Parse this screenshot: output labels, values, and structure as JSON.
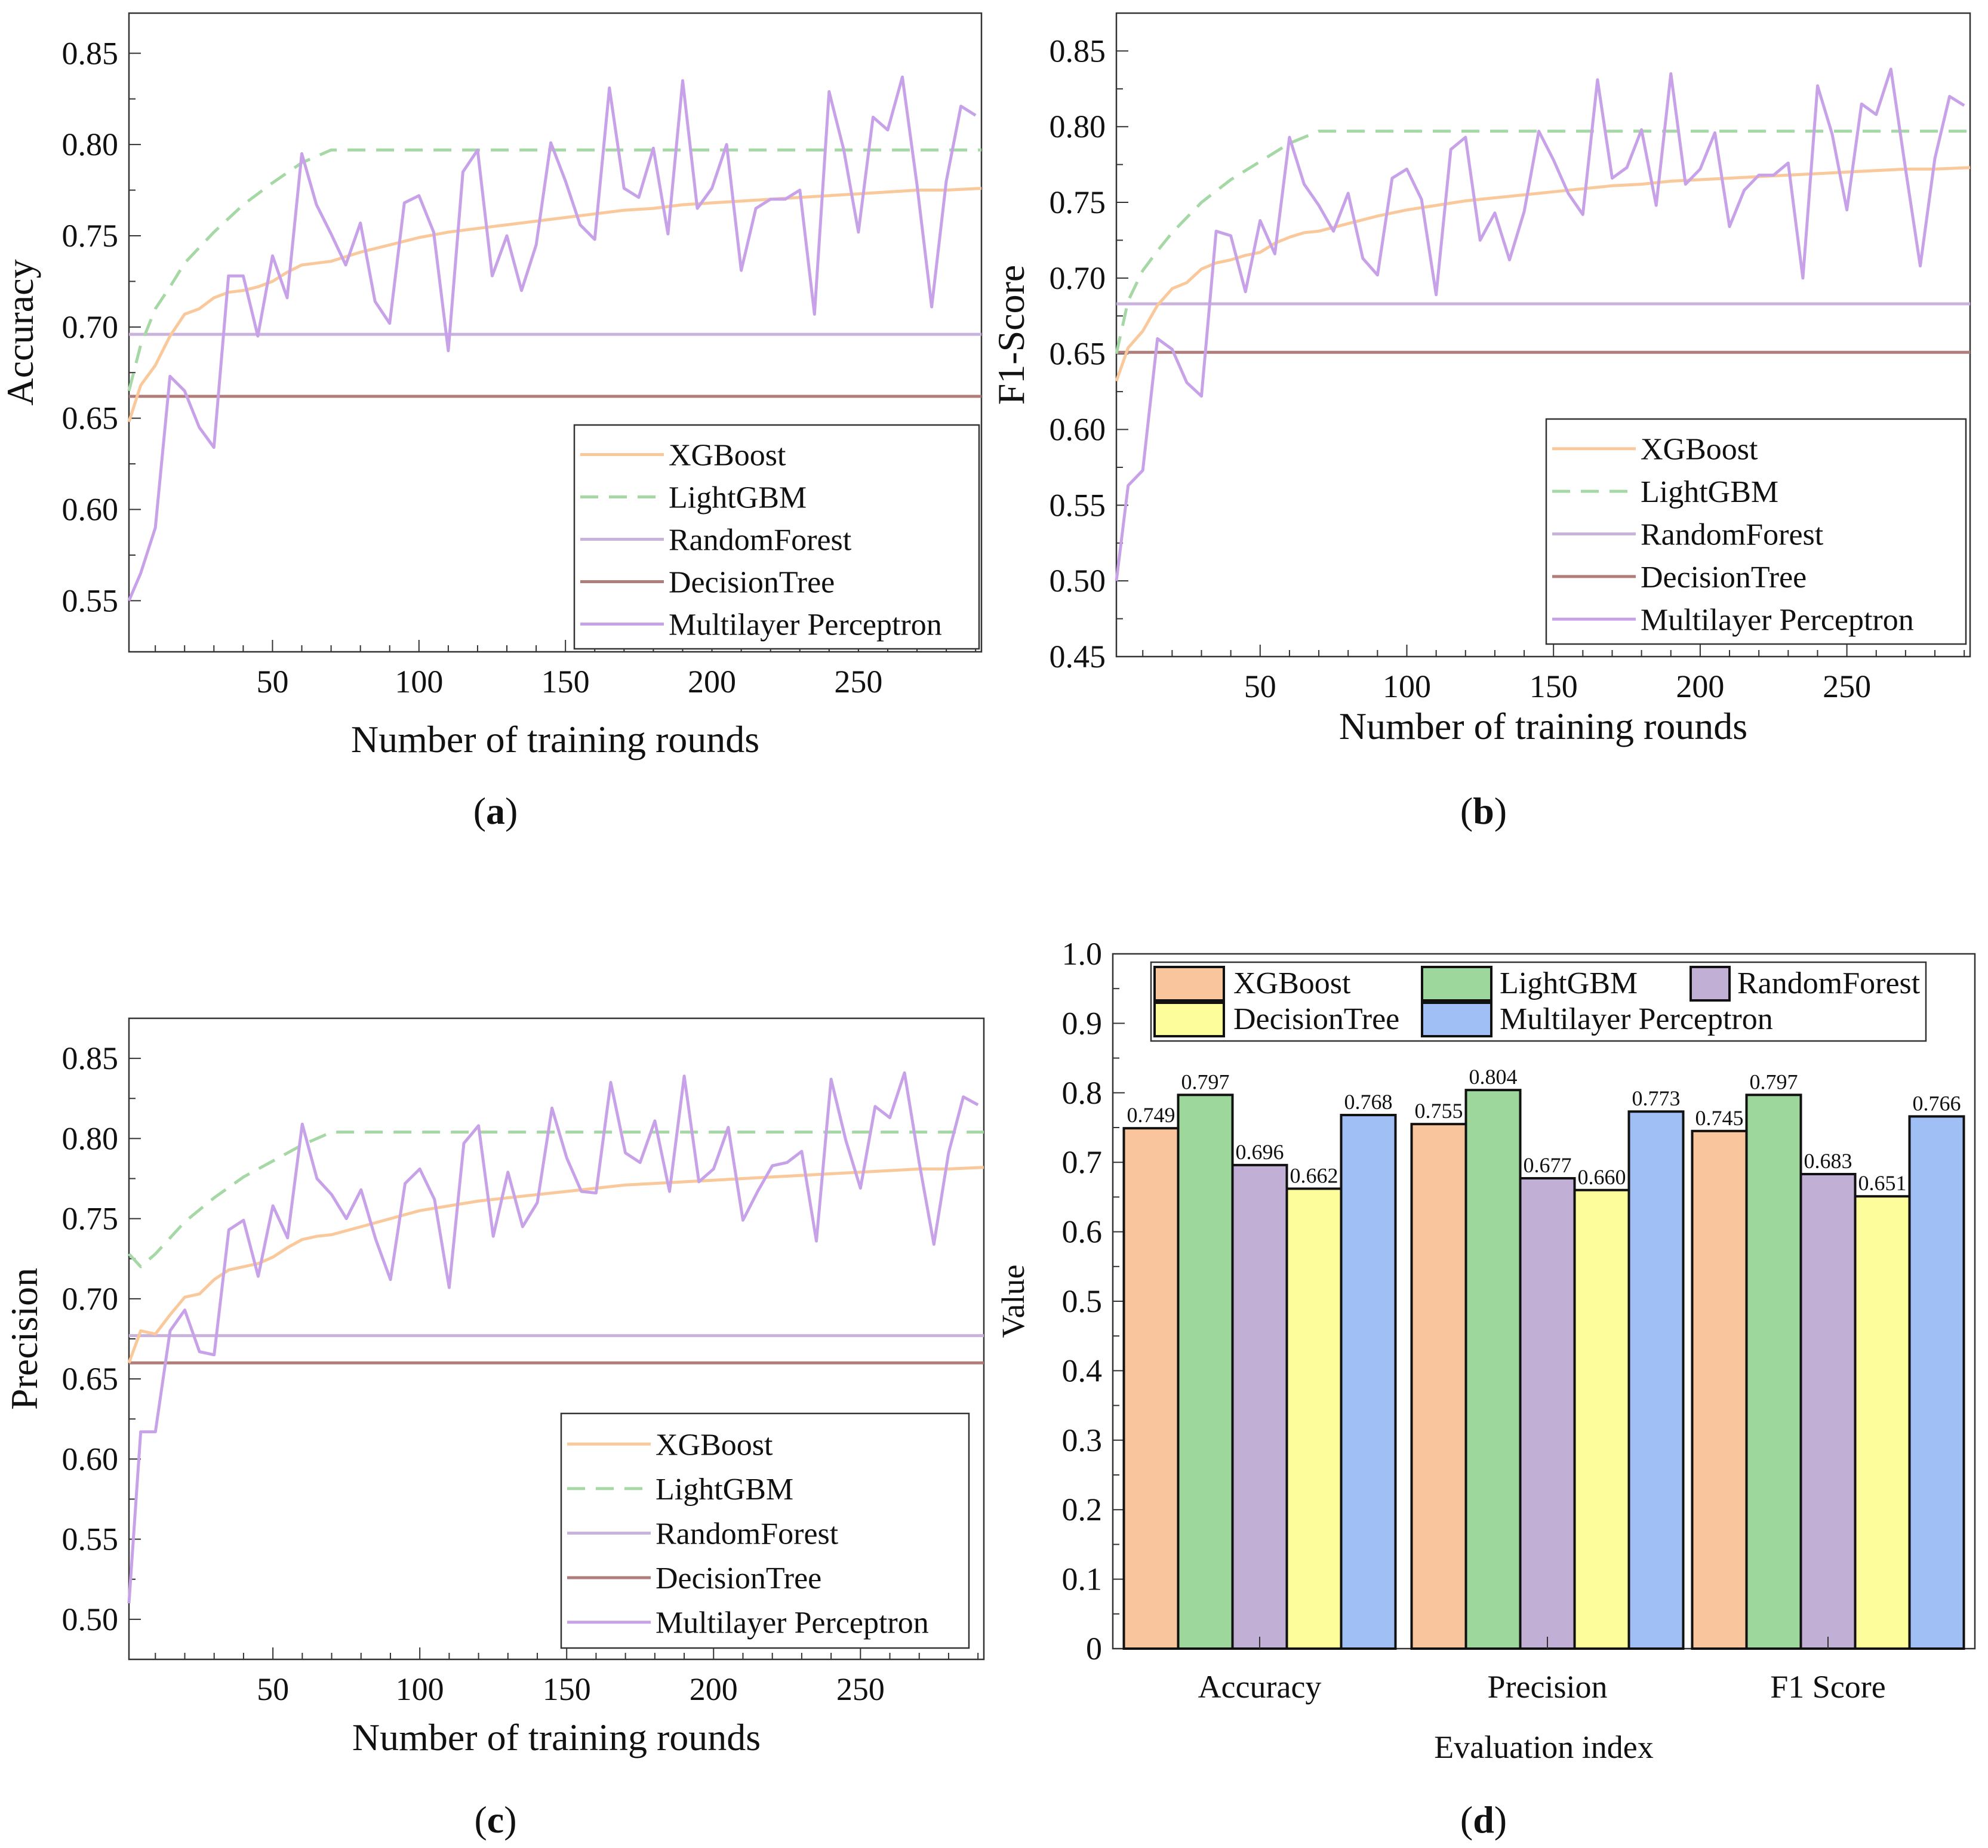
{
  "legend_labels": [
    "XGBoost",
    "LightGBM",
    "RandomForest",
    "DecisionTree",
    "Multilayer Perceptron"
  ],
  "colors": {
    "XGBoost": "#f9c89b",
    "LightGBM": "#a6d8a6",
    "RandomForest": "#c9b3dd",
    "DecisionTree": "#b07d7a",
    "Multilayer Perceptron": "#c8a2e8",
    "bar_XGBoost": "#f9c59c",
    "bar_LightGBM": "#9ed79c",
    "bar_RandomForest": "#c2afd6",
    "bar_DecisionTree": "#fdfd9c",
    "bar_MLP": "#9fbff5"
  },
  "captions": {
    "a": "a",
    "b": "b",
    "c": "c",
    "d": "d"
  },
  "chart_data": [
    {
      "id": "a",
      "type": "line",
      "xlabel": "Number of training rounds",
      "ylabel": "Accuracy",
      "xlim": [
        1,
        292
      ],
      "ylim": [
        0.522,
        0.872
      ],
      "xticks": [
        50,
        100,
        150,
        200,
        250
      ],
      "yticks": [
        0.55,
        0.6,
        0.65,
        0.7,
        0.75,
        0.8,
        0.85
      ],
      "series": [
        {
          "name": "XGBoost",
          "style": "solid",
          "x": [
            1,
            5,
            10,
            15,
            20,
            25,
            30,
            35,
            40,
            45,
            50,
            55,
            60,
            65,
            70,
            80,
            90,
            100,
            110,
            120,
            130,
            140,
            150,
            160,
            170,
            180,
            190,
            200,
            210,
            220,
            230,
            240,
            250,
            260,
            270,
            280,
            292
          ],
          "y": [
            0.648,
            0.668,
            0.679,
            0.695,
            0.707,
            0.71,
            0.716,
            0.719,
            0.72,
            0.722,
            0.725,
            0.73,
            0.734,
            0.735,
            0.736,
            0.741,
            0.745,
            0.749,
            0.752,
            0.754,
            0.756,
            0.758,
            0.76,
            0.762,
            0.764,
            0.765,
            0.767,
            0.768,
            0.769,
            0.77,
            0.771,
            0.772,
            0.773,
            0.774,
            0.775,
            0.775,
            0.776
          ]
        },
        {
          "name": "LightGBM",
          "style": "dashed",
          "x": [
            1,
            5,
            10,
            15,
            20,
            30,
            40,
            50,
            60,
            70,
            80,
            100,
            150,
            200,
            250,
            292
          ],
          "y": [
            0.665,
            0.69,
            0.71,
            0.722,
            0.735,
            0.752,
            0.767,
            0.779,
            0.79,
            0.797,
            0.797,
            0.797,
            0.797,
            0.797,
            0.797,
            0.797
          ]
        },
        {
          "name": "RandomForest",
          "style": "solid",
          "x": [
            1,
            292
          ],
          "y": [
            0.696,
            0.696
          ]
        },
        {
          "name": "DecisionTree",
          "style": "solid",
          "x": [
            1,
            292
          ],
          "y": [
            0.662,
            0.662
          ]
        },
        {
          "name": "Multilayer Perceptron",
          "style": "solid",
          "x": [
            1,
            5,
            10,
            15,
            20,
            25,
            30,
            35,
            40,
            45,
            50,
            55,
            60,
            65,
            70,
            75,
            80,
            85,
            90,
            95,
            100,
            105,
            110,
            115,
            120,
            125,
            130,
            135,
            140,
            145,
            150,
            155,
            160,
            165,
            170,
            175,
            180,
            185,
            190,
            195,
            200,
            205,
            210,
            215,
            220,
            225,
            230,
            235,
            240,
            245,
            250,
            255,
            260,
            265,
            270,
            275,
            280,
            285,
            290
          ],
          "y": [
            0.55,
            0.565,
            0.59,
            0.673,
            0.665,
            0.645,
            0.634,
            0.728,
            0.728,
            0.695,
            0.739,
            0.716,
            0.795,
            0.767,
            0.751,
            0.734,
            0.757,
            0.714,
            0.702,
            0.768,
            0.772,
            0.752,
            0.687,
            0.785,
            0.797,
            0.728,
            0.75,
            0.72,
            0.745,
            0.801,
            0.78,
            0.756,
            0.748,
            0.831,
            0.776,
            0.771,
            0.798,
            0.751,
            0.835,
            0.765,
            0.776,
            0.8,
            0.731,
            0.765,
            0.77,
            0.77,
            0.775,
            0.707,
            0.829,
            0.797,
            0.752,
            0.815,
            0.808,
            0.837,
            0.778,
            0.711,
            0.78,
            0.821,
            0.816
          ]
        }
      ]
    },
    {
      "id": "b",
      "type": "line",
      "xlabel": "Number of training rounds",
      "ylabel": "F1-Score",
      "xlim": [
        1,
        292
      ],
      "ylim": [
        0.45,
        0.875
      ],
      "xticks": [
        50,
        100,
        150,
        200,
        250
      ],
      "yticks": [
        0.45,
        0.5,
        0.55,
        0.6,
        0.65,
        0.7,
        0.75,
        0.8,
        0.85
      ],
      "series": [
        {
          "name": "XGBoost",
          "style": "solid",
          "x": [
            1,
            5,
            10,
            15,
            20,
            25,
            30,
            35,
            40,
            45,
            50,
            55,
            60,
            65,
            70,
            80,
            90,
            100,
            110,
            120,
            130,
            140,
            150,
            160,
            170,
            180,
            190,
            200,
            210,
            220,
            230,
            240,
            250,
            260,
            270,
            280,
            292
          ],
          "y": [
            0.632,
            0.654,
            0.665,
            0.682,
            0.693,
            0.697,
            0.706,
            0.71,
            0.712,
            0.715,
            0.717,
            0.723,
            0.727,
            0.73,
            0.731,
            0.736,
            0.741,
            0.745,
            0.748,
            0.751,
            0.753,
            0.755,
            0.757,
            0.759,
            0.761,
            0.762,
            0.764,
            0.765,
            0.766,
            0.767,
            0.768,
            0.769,
            0.77,
            0.771,
            0.772,
            0.772,
            0.773
          ]
        },
        {
          "name": "LightGBM",
          "style": "dashed",
          "x": [
            1,
            5,
            10,
            15,
            20,
            30,
            40,
            50,
            60,
            70,
            80,
            100,
            150,
            200,
            250,
            292
          ],
          "y": [
            0.65,
            0.685,
            0.705,
            0.718,
            0.73,
            0.75,
            0.765,
            0.777,
            0.789,
            0.797,
            0.797,
            0.797,
            0.797,
            0.797,
            0.797,
            0.797
          ]
        },
        {
          "name": "RandomForest",
          "style": "solid",
          "x": [
            1,
            292
          ],
          "y": [
            0.683,
            0.683
          ]
        },
        {
          "name": "DecisionTree",
          "style": "solid",
          "x": [
            1,
            292
          ],
          "y": [
            0.651,
            0.651
          ]
        },
        {
          "name": "Multilayer Perceptron",
          "style": "solid",
          "x": [
            1,
            5,
            10,
            15,
            20,
            25,
            30,
            35,
            40,
            45,
            50,
            55,
            60,
            65,
            70,
            75,
            80,
            85,
            90,
            95,
            100,
            105,
            110,
            115,
            120,
            125,
            130,
            135,
            140,
            145,
            150,
            155,
            160,
            165,
            170,
            175,
            180,
            185,
            190,
            195,
            200,
            205,
            210,
            215,
            220,
            225,
            230,
            235,
            240,
            245,
            250,
            255,
            260,
            265,
            270,
            275,
            280,
            285,
            290
          ],
          "y": [
            0.5,
            0.563,
            0.573,
            0.66,
            0.653,
            0.631,
            0.622,
            0.731,
            0.728,
            0.691,
            0.738,
            0.716,
            0.793,
            0.762,
            0.748,
            0.731,
            0.756,
            0.713,
            0.702,
            0.766,
            0.772,
            0.752,
            0.689,
            0.785,
            0.793,
            0.725,
            0.743,
            0.712,
            0.744,
            0.797,
            0.778,
            0.756,
            0.742,
            0.831,
            0.766,
            0.773,
            0.798,
            0.748,
            0.835,
            0.762,
            0.772,
            0.796,
            0.734,
            0.758,
            0.768,
            0.768,
            0.776,
            0.7,
            0.827,
            0.795,
            0.745,
            0.815,
            0.808,
            0.838,
            0.772,
            0.708,
            0.779,
            0.82,
            0.814
          ]
        }
      ]
    },
    {
      "id": "c",
      "type": "line",
      "xlabel": "Number of training rounds",
      "ylabel": "Precision",
      "xlim": [
        1,
        292
      ],
      "ylim": [
        0.475,
        0.875
      ],
      "xticks": [
        50,
        100,
        150,
        200,
        250
      ],
      "yticks": [
        0.5,
        0.55,
        0.6,
        0.65,
        0.7,
        0.75,
        0.8,
        0.85
      ],
      "series": [
        {
          "name": "XGBoost",
          "style": "solid",
          "x": [
            1,
            5,
            10,
            15,
            20,
            25,
            30,
            35,
            40,
            45,
            50,
            55,
            60,
            65,
            70,
            80,
            90,
            100,
            110,
            120,
            130,
            140,
            150,
            160,
            170,
            180,
            190,
            200,
            210,
            220,
            230,
            240,
            250,
            260,
            270,
            280,
            292
          ],
          "y": [
            0.66,
            0.68,
            0.678,
            0.69,
            0.701,
            0.703,
            0.712,
            0.718,
            0.72,
            0.722,
            0.726,
            0.732,
            0.737,
            0.739,
            0.74,
            0.745,
            0.75,
            0.755,
            0.758,
            0.761,
            0.763,
            0.765,
            0.767,
            0.769,
            0.771,
            0.772,
            0.773,
            0.774,
            0.775,
            0.776,
            0.777,
            0.778,
            0.779,
            0.78,
            0.781,
            0.781,
            0.782
          ]
        },
        {
          "name": "LightGBM",
          "style": "dashed",
          "x": [
            1,
            5,
            10,
            15,
            20,
            30,
            40,
            50,
            60,
            70,
            80,
            100,
            150,
            200,
            250,
            292
          ],
          "y": [
            0.728,
            0.72,
            0.728,
            0.738,
            0.748,
            0.763,
            0.776,
            0.786,
            0.796,
            0.804,
            0.804,
            0.804,
            0.804,
            0.804,
            0.804,
            0.804
          ]
        },
        {
          "name": "RandomForest",
          "style": "solid",
          "x": [
            1,
            292
          ],
          "y": [
            0.677,
            0.677
          ]
        },
        {
          "name": "DecisionTree",
          "style": "solid",
          "x": [
            1,
            292
          ],
          "y": [
            0.66,
            0.66
          ]
        },
        {
          "name": "Multilayer Perceptron",
          "style": "solid",
          "x": [
            1,
            5,
            10,
            15,
            20,
            25,
            30,
            35,
            40,
            45,
            50,
            55,
            60,
            65,
            70,
            75,
            80,
            85,
            90,
            95,
            100,
            105,
            110,
            115,
            120,
            125,
            130,
            135,
            140,
            145,
            150,
            155,
            160,
            165,
            170,
            175,
            180,
            185,
            190,
            195,
            200,
            205,
            210,
            215,
            220,
            225,
            230,
            235,
            240,
            245,
            250,
            255,
            260,
            265,
            270,
            275,
            280,
            285,
            290
          ],
          "y": [
            0.51,
            0.617,
            0.617,
            0.68,
            0.693,
            0.667,
            0.665,
            0.743,
            0.749,
            0.714,
            0.758,
            0.738,
            0.809,
            0.775,
            0.765,
            0.75,
            0.768,
            0.737,
            0.712,
            0.772,
            0.781,
            0.762,
            0.707,
            0.797,
            0.808,
            0.739,
            0.779,
            0.745,
            0.76,
            0.819,
            0.788,
            0.767,
            0.766,
            0.835,
            0.791,
            0.785,
            0.811,
            0.767,
            0.839,
            0.773,
            0.781,
            0.807,
            0.749,
            0.767,
            0.783,
            0.785,
            0.792,
            0.736,
            0.837,
            0.799,
            0.769,
            0.82,
            0.813,
            0.841,
            0.785,
            0.734,
            0.791,
            0.826,
            0.821
          ]
        }
      ]
    },
    {
      "id": "d",
      "type": "bar",
      "xlabel": "Evaluation index",
      "ylabel": "Value",
      "ylim": [
        0,
        1.0
      ],
      "yticks": [
        0,
        0.1,
        0.2,
        0.3,
        0.4,
        0.5,
        0.6,
        0.7,
        0.8,
        0.9,
        1.0
      ],
      "yticklabels": [
        "0",
        "0.1",
        "0.2",
        "0.3",
        "0.4",
        "0.5",
        "0.6",
        "0.7",
        "0.8",
        "0.9",
        "1.0"
      ],
      "categories": [
        "Accuracy",
        "Precision",
        "F1 Score"
      ],
      "series": [
        {
          "name": "XGBoost",
          "values": [
            0.749,
            0.755,
            0.745
          ],
          "labels": [
            "0.749",
            "0.755",
            "0.745"
          ]
        },
        {
          "name": "LightGBM",
          "values": [
            0.797,
            0.804,
            0.797
          ],
          "labels": [
            "0.797",
            "0.804",
            "0.797"
          ]
        },
        {
          "name": "RandomForest",
          "values": [
            0.696,
            0.677,
            0.683
          ],
          "labels": [
            "0.696",
            "0.677",
            "0.683"
          ]
        },
        {
          "name": "DecisionTree",
          "values": [
            0.662,
            0.66,
            0.651
          ],
          "labels": [
            "0.662",
            "0.660",
            "0.651"
          ]
        },
        {
          "name": "Multilayer Perceptron",
          "values": [
            0.768,
            0.773,
            0.766
          ],
          "labels": [
            "0.768",
            "0.773",
            "0.766"
          ]
        }
      ]
    }
  ]
}
